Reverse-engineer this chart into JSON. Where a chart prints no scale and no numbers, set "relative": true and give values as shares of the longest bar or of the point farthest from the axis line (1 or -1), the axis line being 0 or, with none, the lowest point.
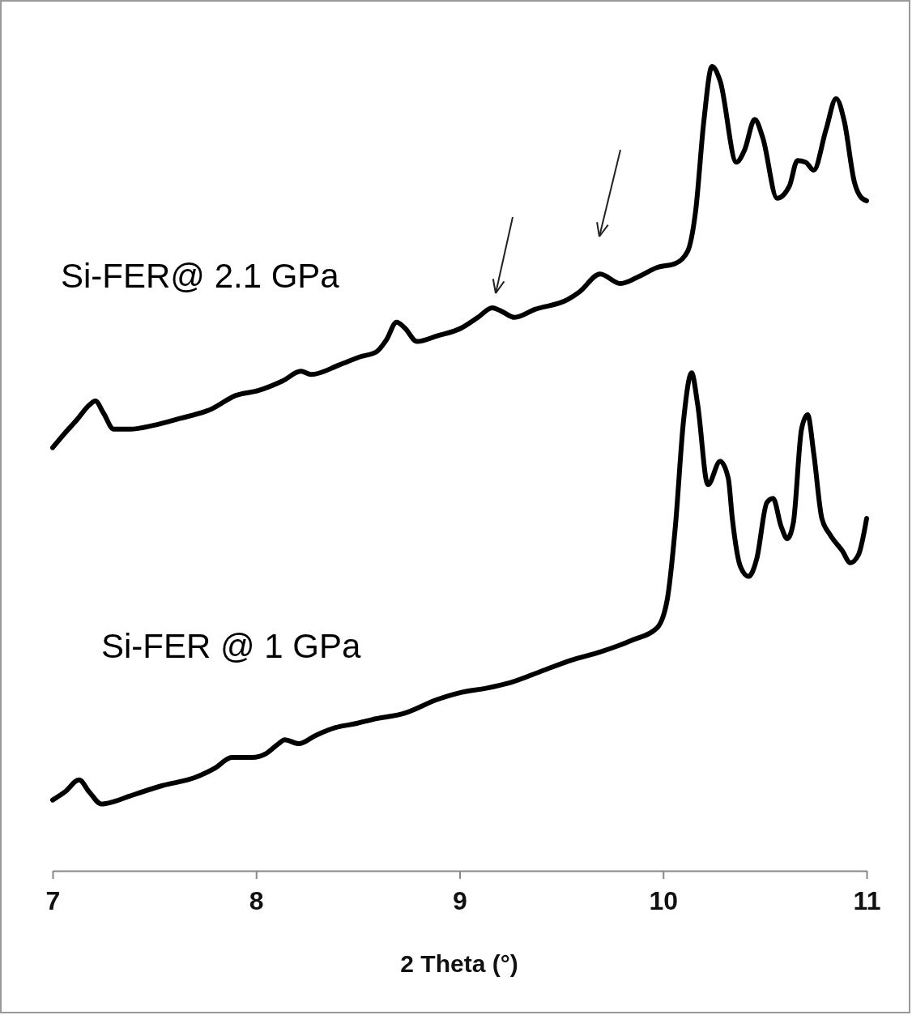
{
  "chart_data": {
    "type": "line",
    "xlabel": "2 Theta (°)",
    "relative": true,
    "xlim": [
      7,
      11
    ],
    "xticks": [
      7,
      8,
      9,
      10,
      11
    ],
    "grid": false,
    "legend": false,
    "series": [
      {
        "name": "Si-FER@ 2.1 GPa",
        "color": "#000000",
        "x": [
          7.0,
          7.06,
          7.12,
          7.18,
          7.21,
          7.25,
          7.3,
          7.38,
          7.5,
          7.62,
          7.78,
          7.9,
          8.01,
          8.13,
          8.22,
          8.27,
          8.41,
          8.51,
          8.59,
          8.64,
          8.69,
          8.73,
          8.79,
          8.89,
          9.01,
          9.09,
          9.16,
          9.21,
          9.27,
          9.37,
          9.53,
          9.59,
          9.69,
          9.79,
          9.89,
          9.97,
          10.06,
          10.12,
          10.16,
          10.2,
          10.24,
          10.28,
          10.36,
          10.4,
          10.45,
          10.49,
          10.56,
          10.62,
          10.66,
          10.7,
          10.74,
          10.8,
          10.85,
          10.89,
          10.94,
          10.97,
          11.0
        ],
        "values": [
          0.526,
          0.544,
          0.561,
          0.579,
          0.584,
          0.569,
          0.549,
          0.549,
          0.554,
          0.562,
          0.574,
          0.591,
          0.597,
          0.609,
          0.621,
          0.617,
          0.629,
          0.639,
          0.645,
          0.66,
          0.682,
          0.675,
          0.658,
          0.665,
          0.675,
          0.688,
          0.7,
          0.695,
          0.688,
          0.698,
          0.71,
          0.72,
          0.742,
          0.73,
          0.74,
          0.75,
          0.755,
          0.77,
          0.821,
          0.932,
          1.0,
          0.982,
          0.881,
          0.896,
          0.934,
          0.911,
          0.836,
          0.851,
          0.883,
          0.881,
          0.871,
          0.921,
          0.96,
          0.932,
          0.856,
          0.838,
          0.833
        ]
      },
      {
        "name": "Si-FER @ 1 GPa",
        "color": "#000000",
        "x": [
          7.0,
          7.06,
          7.13,
          7.18,
          7.24,
          7.3,
          7.38,
          7.54,
          7.7,
          7.8,
          7.88,
          7.98,
          8.05,
          8.11,
          8.14,
          8.21,
          8.29,
          8.39,
          8.49,
          8.57,
          8.73,
          8.89,
          9.01,
          9.13,
          9.25,
          9.41,
          9.55,
          9.69,
          9.85,
          9.97,
          10.02,
          10.06,
          10.1,
          10.14,
          10.17,
          10.22,
          10.28,
          10.32,
          10.34,
          10.38,
          10.42,
          10.46,
          10.51,
          10.54,
          10.58,
          10.61,
          10.64,
          10.68,
          10.71,
          10.74,
          10.78,
          10.82,
          10.88,
          10.92,
          10.96,
          11.0
        ],
        "values": [
          0.088,
          0.098,
          0.113,
          0.098,
          0.083,
          0.086,
          0.093,
          0.106,
          0.116,
          0.128,
          0.141,
          0.141,
          0.146,
          0.158,
          0.163,
          0.158,
          0.168,
          0.178,
          0.183,
          0.188,
          0.196,
          0.213,
          0.222,
          0.227,
          0.234,
          0.249,
          0.262,
          0.272,
          0.287,
          0.302,
          0.337,
          0.428,
          0.559,
          0.619,
          0.579,
          0.48,
          0.509,
          0.488,
          0.438,
          0.378,
          0.366,
          0.388,
          0.458,
          0.463,
          0.428,
          0.413,
          0.433,
          0.549,
          0.567,
          0.519,
          0.438,
          0.418,
          0.398,
          0.383,
          0.393,
          0.438
        ]
      }
    ]
  }
}
